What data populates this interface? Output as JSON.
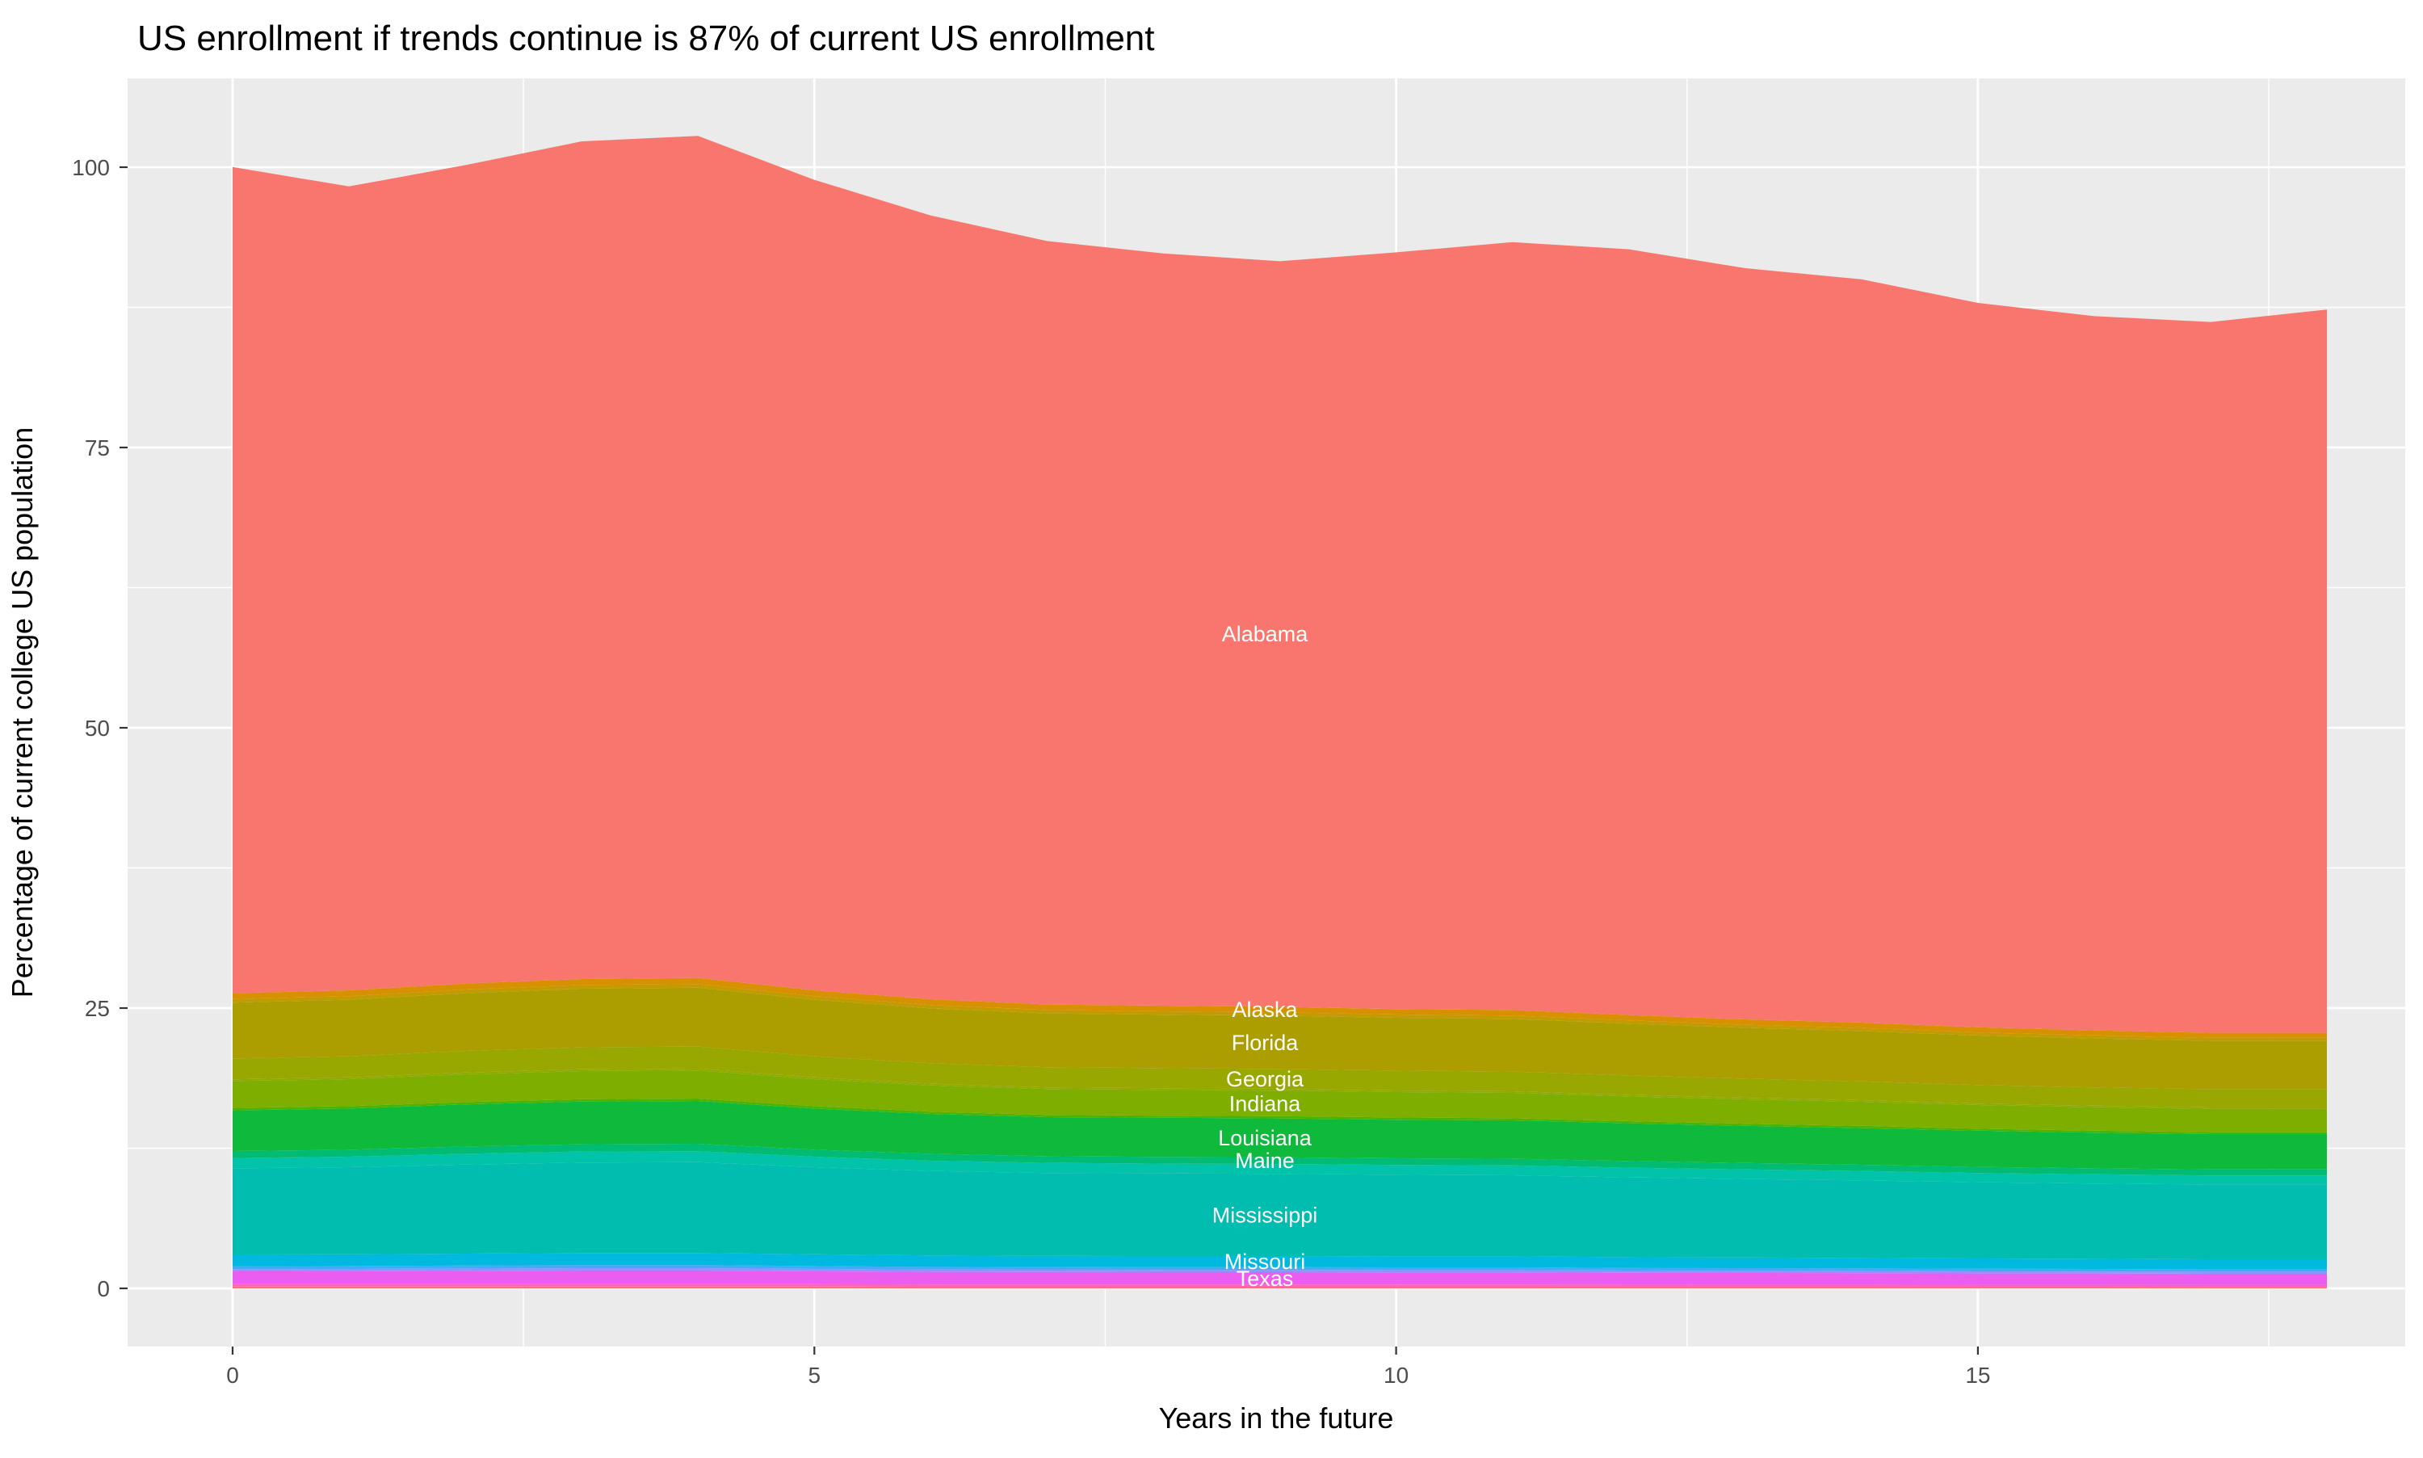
{
  "title": "US enrollment if trends continue is 87% of current US enrollment",
  "axes": {
    "x": {
      "label": "Years in the future",
      "major_ticks": [
        0,
        5,
        10,
        15
      ],
      "minor_ticks": [
        2.5,
        7.5,
        12.5,
        17.5
      ],
      "domain": [
        0,
        18
      ]
    },
    "y": {
      "label": "Percentage of current college US population",
      "major_ticks": [
        0,
        25,
        50,
        75,
        100
      ],
      "minor_ticks": [
        12.5,
        37.5,
        62.5,
        87.5
      ],
      "domain": [
        0,
        102.8
      ]
    }
  },
  "style": {
    "panel_bg": "#EBEBEB",
    "grid_color": "#FFFFFF",
    "tick_text_color": "#4D4D4D",
    "tick_mark_color": "#333333",
    "area_label_color": "#FFFFFF"
  },
  "chart_data": {
    "type": "area",
    "stacked": true,
    "grid": true,
    "legend": "none",
    "title": "US enrollment if trends continue is 87% of current US enrollment",
    "xlabel": "Years in the future",
    "ylabel": "Percentage of current college US population",
    "xlim": [
      0,
      18
    ],
    "ylim_shown_ticks": [
      0,
      100
    ],
    "x_years": [
      0,
      1,
      2,
      3,
      4,
      5,
      6,
      7,
      8,
      9,
      10,
      11,
      12,
      13,
      14,
      15,
      16,
      17,
      18
    ],
    "total_stack_top": [
      100.0,
      98.3,
      100.2,
      102.3,
      102.8,
      98.9,
      95.7,
      93.4,
      92.3,
      91.6,
      92.4,
      93.3,
      92.7,
      91.0,
      90.0,
      87.9,
      86.7,
      86.2,
      87.3
    ],
    "label_year": 9,
    "note": "Stacked area of states, bottom-to-top; unnamed thin bands are additional unlabeled state slivers visible as rainbow stripes between the labeled bands.",
    "series": [
      {
        "name": "",
        "labeled": false,
        "color": "#F9726B",
        "values": [
          0.16,
          0.16,
          0.16,
          0.16,
          0.16,
          0.16,
          0.15,
          0.15,
          0.15,
          0.15,
          0.15,
          0.15,
          0.14,
          0.14,
          0.14,
          0.14,
          0.14,
          0.13,
          0.13
        ]
      },
      {
        "name": "",
        "labeled": false,
        "color": "#FF62BC",
        "values": [
          0.21,
          0.21,
          0.21,
          0.22,
          0.22,
          0.21,
          0.2,
          0.2,
          0.2,
          0.2,
          0.2,
          0.2,
          0.19,
          0.19,
          0.19,
          0.18,
          0.18,
          0.18,
          0.18
        ]
      },
      {
        "name": "Texas",
        "labeled": true,
        "color": "#EB5CF0",
        "values": [
          1.14,
          1.15,
          1.18,
          1.2,
          1.2,
          1.15,
          1.12,
          1.1,
          1.09,
          1.09,
          1.08,
          1.08,
          1.06,
          1.04,
          1.03,
          1.01,
          1.0,
          0.99,
          0.99
        ]
      },
      {
        "name": "",
        "labeled": false,
        "color": "#9590FF",
        "values": [
          0.21,
          0.21,
          0.21,
          0.22,
          0.22,
          0.21,
          0.2,
          0.2,
          0.2,
          0.2,
          0.2,
          0.2,
          0.19,
          0.19,
          0.19,
          0.18,
          0.18,
          0.18,
          0.18
        ]
      },
      {
        "name": "",
        "labeled": false,
        "color": "#47A8F8",
        "values": [
          0.26,
          0.26,
          0.27,
          0.27,
          0.27,
          0.26,
          0.25,
          0.25,
          0.25,
          0.25,
          0.25,
          0.24,
          0.24,
          0.24,
          0.23,
          0.23,
          0.23,
          0.22,
          0.22
        ]
      },
      {
        "name": "Missouri",
        "labeled": true,
        "color": "#00B9DF",
        "values": [
          1.04,
          1.05,
          1.07,
          1.09,
          1.09,
          1.05,
          1.02,
          1.0,
          0.99,
          0.99,
          0.98,
          0.98,
          0.96,
          0.95,
          0.93,
          0.92,
          0.91,
          0.9,
          0.9
        ]
      },
      {
        "name": "Mississippi",
        "labeled": true,
        "color": "#00BDAF",
        "values": [
          7.68,
          7.76,
          7.94,
          8.06,
          8.09,
          7.76,
          7.53,
          7.39,
          7.36,
          7.33,
          7.27,
          7.24,
          7.12,
          7.01,
          6.92,
          6.8,
          6.71,
          6.66,
          6.66
        ]
      },
      {
        "name": "",
        "labeled": false,
        "color": "#00C3A9",
        "values": [
          0.93,
          0.94,
          0.97,
          0.98,
          0.98,
          0.94,
          0.92,
          0.9,
          0.89,
          0.89,
          0.88,
          0.88,
          0.87,
          0.85,
          0.84,
          0.83,
          0.82,
          0.81,
          0.81
        ]
      },
      {
        "name": "Maine",
        "labeled": true,
        "color": "#00BC72",
        "values": [
          0.62,
          0.63,
          0.64,
          0.65,
          0.66,
          0.63,
          0.61,
          0.6,
          0.6,
          0.59,
          0.59,
          0.59,
          0.58,
          0.57,
          0.56,
          0.55,
          0.54,
          0.54,
          0.54
        ]
      },
      {
        "name": "Louisiana",
        "labeled": true,
        "color": "#0FB93C",
        "values": [
          3.63,
          3.67,
          3.76,
          3.81,
          3.82,
          3.67,
          3.56,
          3.49,
          3.48,
          3.47,
          3.44,
          3.42,
          3.37,
          3.31,
          3.27,
          3.22,
          3.18,
          3.15,
          3.15
        ]
      },
      {
        "name": "",
        "labeled": false,
        "color": "#4CB400",
        "values": [
          0.21,
          0.21,
          0.21,
          0.22,
          0.22,
          0.21,
          0.2,
          0.2,
          0.2,
          0.2,
          0.2,
          0.2,
          0.19,
          0.19,
          0.19,
          0.18,
          0.18,
          0.18,
          0.18
        ]
      },
      {
        "name": "Indiana",
        "labeled": true,
        "color": "#7DAE00",
        "values": [
          2.39,
          2.41,
          2.47,
          2.5,
          2.51,
          2.41,
          2.34,
          2.3,
          2.29,
          2.28,
          2.26,
          2.25,
          2.21,
          2.18,
          2.15,
          2.11,
          2.09,
          2.07,
          2.07
        ]
      },
      {
        "name": "",
        "labeled": false,
        "color": "#8FAA00",
        "values": [
          0.16,
          0.16,
          0.16,
          0.16,
          0.16,
          0.16,
          0.15,
          0.15,
          0.15,
          0.15,
          0.15,
          0.15,
          0.14,
          0.14,
          0.14,
          0.14,
          0.14,
          0.13,
          0.13
        ]
      },
      {
        "name": "Georgia",
        "labeled": true,
        "color": "#99A800",
        "values": [
          1.87,
          1.89,
          1.93,
          1.96,
          1.97,
          1.89,
          1.83,
          1.8,
          1.79,
          1.78,
          1.77,
          1.76,
          1.73,
          1.7,
          1.68,
          1.65,
          1.63,
          1.62,
          1.62
        ]
      },
      {
        "name": "Florida",
        "labeled": true,
        "color": "#AC9D00",
        "values": [
          4.98,
          5.04,
          5.15,
          5.23,
          5.24,
          5.04,
          4.89,
          4.79,
          4.77,
          4.75,
          4.71,
          4.7,
          4.62,
          4.54,
          4.49,
          4.41,
          4.36,
          4.32,
          4.32
        ]
      },
      {
        "name": "",
        "labeled": false,
        "color": "#C19B00",
        "values": [
          0.31,
          0.31,
          0.32,
          0.33,
          0.33,
          0.31,
          0.31,
          0.3,
          0.3,
          0.3,
          0.29,
          0.29,
          0.29,
          0.28,
          0.28,
          0.28,
          0.27,
          0.27,
          0.27
        ]
      },
      {
        "name": "Alaska",
        "labeled": true,
        "color": "#D89000",
        "values": [
          0.52,
          0.52,
          0.54,
          0.54,
          0.55,
          0.52,
          0.51,
          0.5,
          0.5,
          0.5,
          0.49,
          0.49,
          0.48,
          0.47,
          0.47,
          0.46,
          0.45,
          0.45,
          0.45
        ]
      },
      {
        "name": "Alabama",
        "labeled": true,
        "color": "#F8766D",
        "values": [
          73.7,
          71.7,
          73.0,
          74.7,
          75.1,
          72.3,
          69.9,
          68.1,
          67.1,
          66.5,
          67.5,
          68.5,
          68.3,
          67.0,
          66.3,
          64.6,
          63.7,
          63.4,
          64.5
        ]
      }
    ]
  }
}
